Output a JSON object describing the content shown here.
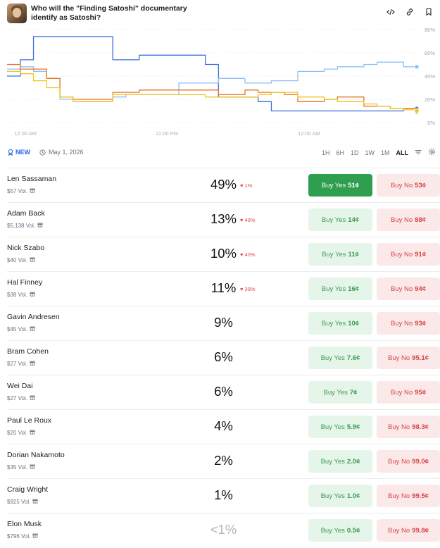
{
  "header": {
    "title": "Who will the \"Finding Satoshi\" documentary identify as Satoshi?",
    "icons": [
      "code-embed-icon",
      "link-icon",
      "bookmark-icon"
    ]
  },
  "chart_data": {
    "type": "line",
    "x_ticks": [
      "12:00 AM",
      "12:00 PM",
      "12:00 AM"
    ],
    "y_ticks": [
      "80%",
      "60%",
      "40%",
      "20%",
      "0%"
    ],
    "ylim": [
      0,
      80
    ],
    "y_axis_side": "right",
    "grid": true,
    "series": [
      {
        "color": "#3b6fe0",
        "values": [
          40,
          54,
          74,
          74,
          74,
          74,
          74,
          74,
          54,
          54,
          58,
          58,
          58,
          58,
          58,
          50,
          22,
          22,
          22,
          18,
          10,
          10,
          10,
          10,
          10,
          10,
          10,
          10,
          10,
          10,
          12,
          12
        ]
      },
      {
        "color": "#8ec0f2",
        "values": [
          46,
          48,
          44,
          38,
          20,
          18,
          18,
          18,
          22,
          24,
          24,
          24,
          24,
          34,
          34,
          34,
          38,
          38,
          34,
          34,
          36,
          36,
          44,
          44,
          46,
          48,
          48,
          50,
          52,
          52,
          48,
          48
        ]
      },
      {
        "color": "#e8742a",
        "values": [
          50,
          46,
          46,
          38,
          22,
          20,
          20,
          20,
          26,
          26,
          28,
          28,
          28,
          28,
          28,
          28,
          24,
          24,
          28,
          26,
          26,
          24,
          18,
          18,
          20,
          22,
          22,
          14,
          14,
          12,
          12,
          9
        ]
      },
      {
        "color": "#f2c420",
        "values": [
          44,
          42,
          36,
          30,
          22,
          18,
          18,
          18,
          24,
          24,
          24,
          24,
          24,
          24,
          24,
          22,
          22,
          22,
          22,
          24,
          26,
          26,
          22,
          22,
          20,
          18,
          18,
          16,
          14,
          12,
          11,
          10
        ]
      }
    ]
  },
  "controls": {
    "badge": "NEW",
    "date": "May 1, 2026",
    "ranges": [
      "1H",
      "6H",
      "1D",
      "1W",
      "1M",
      "ALL"
    ],
    "active_range": "ALL"
  },
  "rows": [
    {
      "name": "Len Sassaman",
      "vol": "$57 Vol.",
      "pct": "49%",
      "chg": "1%",
      "yes": "51¢",
      "no": "53¢",
      "primary": true
    },
    {
      "name": "Adam Back",
      "vol": "$5,138 Vol.",
      "pct": "13%",
      "chg": "49%",
      "yes": "14¢",
      "no": "88¢"
    },
    {
      "name": "Nick Szabo",
      "vol": "$40 Vol.",
      "pct": "10%",
      "chg": "40%",
      "yes": "11¢",
      "no": "91¢"
    },
    {
      "name": "Hal Finney",
      "vol": "$38 Vol.",
      "pct": "11%",
      "chg": "39%",
      "yes": "16¢",
      "no": "94¢"
    },
    {
      "name": "Gavin Andresen",
      "vol": "$45 Vol.",
      "pct": "9%",
      "chg": "",
      "yes": "10¢",
      "no": "93¢"
    },
    {
      "name": "Bram Cohen",
      "vol": "$27 Vol.",
      "pct": "6%",
      "chg": "",
      "yes": "7.6¢",
      "no": "95.1¢"
    },
    {
      "name": "Wei Dai",
      "vol": "$27 Vol.",
      "pct": "6%",
      "chg": "",
      "yes": "7¢",
      "no": "95¢"
    },
    {
      "name": "Paul Le Roux",
      "vol": "$20 Vol.",
      "pct": "4%",
      "chg": "",
      "yes": "5.9¢",
      "no": "98.3¢"
    },
    {
      "name": "Dorian Nakamoto",
      "vol": "$35 Vol.",
      "pct": "2%",
      "chg": "",
      "yes": "2.0¢",
      "no": "99.0¢"
    },
    {
      "name": "Craig Wright",
      "vol": "$925 Vol.",
      "pct": "1%",
      "chg": "",
      "yes": "1.0¢",
      "no": "99.5¢"
    },
    {
      "name": "Elon Musk",
      "vol": "$796 Vol.",
      "pct": "<1%",
      "chg": "",
      "yes": "0.5¢",
      "no": "99.8¢",
      "dim": true
    }
  ],
  "labels": {
    "buy_yes": "Buy Yes",
    "buy_no": "Buy No"
  },
  "colors": {
    "green": "#2e9e4f",
    "red": "#d64545",
    "blue": "#2563eb"
  }
}
